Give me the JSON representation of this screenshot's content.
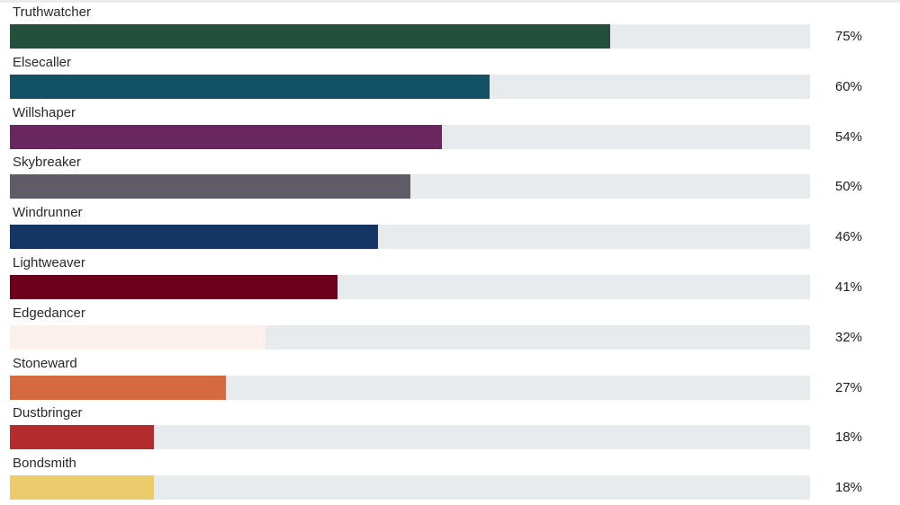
{
  "chart_data": {
    "type": "bar",
    "orientation": "horizontal",
    "max": 100,
    "grid": false,
    "legend": "none",
    "bars": [
      {
        "label": "Truthwatcher",
        "value": 75,
        "value_label": "75%",
        "color": "#234f3c"
      },
      {
        "label": "Elsecaller",
        "value": 60,
        "value_label": "60%",
        "color": "#135264"
      },
      {
        "label": "Willshaper",
        "value": 54,
        "value_label": "54%",
        "color": "#6a265f"
      },
      {
        "label": "Skybreaker",
        "value": 50,
        "value_label": "50%",
        "color": "#5f5c67"
      },
      {
        "label": "Windrunner",
        "value": 46,
        "value_label": "46%",
        "color": "#153565"
      },
      {
        "label": "Lightweaver",
        "value": 41,
        "value_label": "41%",
        "color": "#6c001c"
      },
      {
        "label": "Edgedancer",
        "value": 32,
        "value_label": "32%",
        "color": "#fbf0ec"
      },
      {
        "label": "Stoneward",
        "value": 27,
        "value_label": "27%",
        "color": "#d56a40"
      },
      {
        "label": "Dustbringer",
        "value": 18,
        "value_label": "18%",
        "color": "#b32c2e"
      },
      {
        "label": "Bondsmith",
        "value": 18,
        "value_label": "18%",
        "color": "#ebcb6b"
      }
    ]
  }
}
